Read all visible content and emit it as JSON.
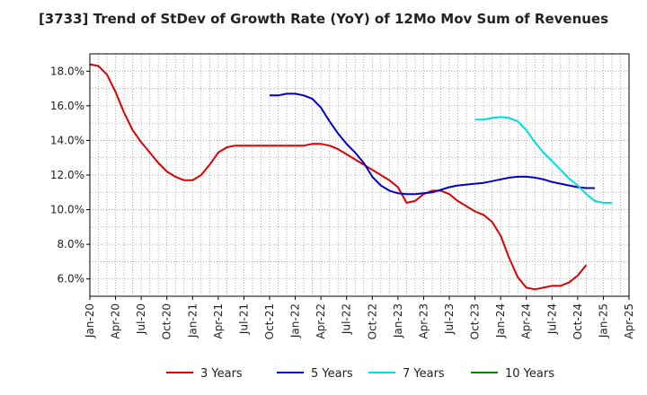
{
  "chart_data": {
    "type": "line",
    "title": "[3733]  Trend of StDev of Growth Rate (YoY) of 12Mo Mov Sum of Revenues",
    "xlabel": "",
    "ylabel": "",
    "x_range": [
      2020.0,
      2025.25
    ],
    "ylim": [
      5.0,
      19.0
    ],
    "y_ticks": [
      6,
      8,
      10,
      12,
      14,
      16,
      18
    ],
    "y_tick_labels": [
      "6.0%",
      "8.0%",
      "10.0%",
      "12.0%",
      "14.0%",
      "16.0%",
      "18.0%"
    ],
    "x_tick_labels": [
      "Jan-20",
      "Apr-20",
      "Jul-20",
      "Oct-20",
      "Jan-21",
      "Apr-21",
      "Jul-21",
      "Oct-21",
      "Jan-22",
      "Apr-22",
      "Jul-22",
      "Oct-22",
      "Jan-23",
      "Apr-23",
      "Jul-23",
      "Oct-23",
      "Jan-24",
      "Apr-24",
      "Jul-24",
      "Oct-24",
      "Jan-25",
      "Apr-25"
    ],
    "grid": true,
    "legend_position": "bottom",
    "series": [
      {
        "name": "3 Years",
        "color": "#dd0000",
        "start": "Jan-20",
        "values": [
          18.4,
          18.3,
          17.8,
          16.8,
          15.6,
          14.6,
          13.9,
          13.3,
          12.7,
          12.2,
          11.9,
          11.7,
          11.7,
          12.0,
          12.6,
          13.3,
          13.6,
          13.7,
          13.7,
          13.7,
          13.7,
          13.7,
          13.7,
          13.7,
          13.7,
          13.7,
          13.8,
          13.8,
          13.7,
          13.5,
          13.2,
          12.9,
          12.6,
          12.3,
          12.0,
          11.7,
          11.3,
          10.4,
          10.5,
          10.9,
          11.1,
          11.1,
          10.9,
          10.5,
          10.2,
          9.9,
          9.7,
          9.3,
          8.5,
          7.2,
          6.1,
          5.5,
          5.4,
          5.5,
          5.6,
          5.6,
          5.8,
          6.2,
          6.8
        ]
      },
      {
        "name": "5 Years",
        "color": "#0000cc",
        "start": "Oct-21",
        "values": [
          16.6,
          16.6,
          16.7,
          16.7,
          16.6,
          16.4,
          15.9,
          15.1,
          14.4,
          13.8,
          13.3,
          12.7,
          11.9,
          11.4,
          11.1,
          10.95,
          10.9,
          10.9,
          10.95,
          11.0,
          11.15,
          11.3,
          11.4,
          11.45,
          11.5,
          11.55,
          11.65,
          11.75,
          11.85,
          11.9,
          11.9,
          11.85,
          11.75,
          11.6,
          11.5,
          11.4,
          11.3,
          11.25,
          11.25
        ]
      },
      {
        "name": "7 Years",
        "color": "#00dddd",
        "start": "Oct-23",
        "values": [
          15.2,
          15.2,
          15.3,
          15.35,
          15.3,
          15.1,
          14.6,
          13.9,
          13.3,
          12.8,
          12.3,
          11.8,
          11.4,
          10.9,
          10.5,
          10.4,
          10.4
        ]
      },
      {
        "name": "10 Years",
        "color": "#008800",
        "start": "Jan-25",
        "values": []
      }
    ]
  }
}
